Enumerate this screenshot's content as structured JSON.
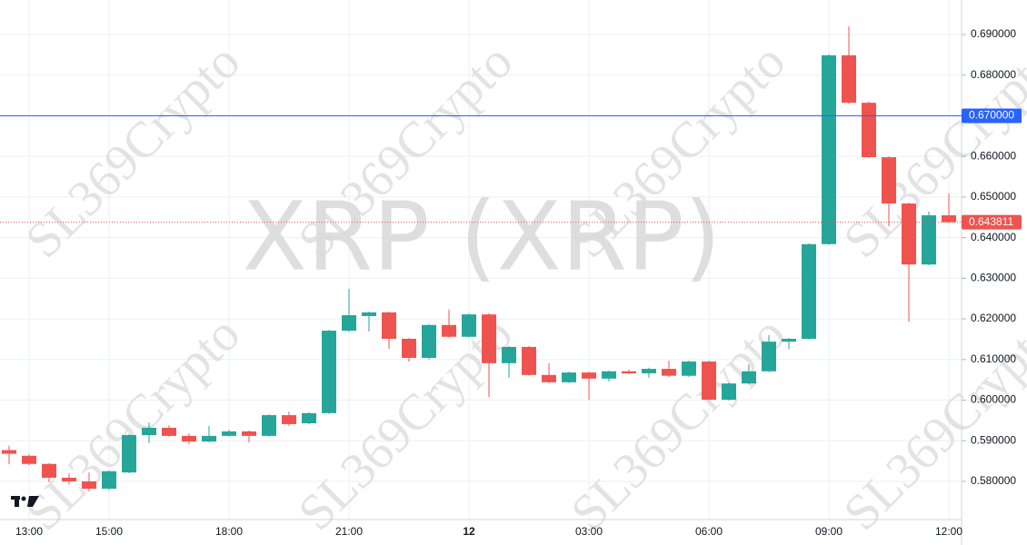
{
  "chart_data": {
    "type": "candlestick",
    "watermark": "XRP (XRP)",
    "brand": "SL369Crypto",
    "categories": [
      null,
      "13:00",
      null,
      null,
      null,
      "15:00",
      null,
      null,
      null,
      null,
      null,
      "18:00",
      null,
      null,
      null,
      null,
      null,
      "21:00",
      null,
      null,
      null,
      null,
      null,
      "12",
      null,
      null,
      null,
      null,
      null,
      "03:00",
      null,
      null,
      null,
      null,
      null,
      "06:00",
      null,
      null,
      null,
      null,
      null,
      "09:00",
      null,
      null,
      null,
      null,
      null,
      "12:00"
    ],
    "open": [
      0.5877,
      0.5863,
      0.5843,
      0.5809,
      0.58,
      0.5782,
      0.5822,
      0.5914,
      0.5932,
      0.5912,
      0.5898,
      0.5912,
      0.5923,
      0.5912,
      0.5963,
      0.5943,
      0.5968,
      0.6171,
      0.6207,
      0.6216,
      0.6151,
      0.6104,
      0.6185,
      0.6156,
      0.6211,
      0.6091,
      0.6131,
      0.6062,
      0.6044,
      0.6068,
      0.6053,
      0.6071,
      0.6066,
      0.6077,
      0.606,
      0.6095,
      0.6001,
      0.6041,
      0.6071,
      0.6144,
      0.6151,
      0.6384,
      0.6849,
      0.6732,
      0.6598,
      0.6484,
      0.6334,
      0.6455
    ],
    "high": [
      0.5888,
      0.5866,
      0.5845,
      0.582,
      0.5822,
      0.5827,
      0.5916,
      0.5945,
      0.5938,
      0.5918,
      0.5936,
      0.5927,
      0.5925,
      0.5965,
      0.5972,
      0.597,
      0.6173,
      0.6274,
      0.6218,
      0.6218,
      0.6153,
      0.6187,
      0.6223,
      0.6214,
      0.6214,
      0.6133,
      0.6133,
      0.6091,
      0.607,
      0.607,
      0.6073,
      0.6075,
      0.608,
      0.6097,
      0.6097,
      0.6097,
      0.6043,
      0.6088,
      0.616,
      0.6153,
      0.6386,
      0.6851,
      0.692,
      0.6735,
      0.66,
      0.6486,
      0.6464,
      0.6509
    ],
    "low": [
      0.5842,
      0.584,
      0.5798,
      0.5793,
      0.5775,
      0.5778,
      0.582,
      0.5894,
      0.591,
      0.5892,
      0.5896,
      0.591,
      0.5896,
      0.591,
      0.5936,
      0.5941,
      0.5966,
      0.6168,
      0.6169,
      0.6126,
      0.6095,
      0.61,
      0.6154,
      0.6154,
      0.6008,
      0.6055,
      0.606,
      0.6042,
      0.6042,
      0.6001,
      0.6046,
      0.6064,
      0.6055,
      0.6057,
      0.6057,
      0.5999,
      0.5999,
      0.6039,
      0.6069,
      0.6126,
      0.6149,
      0.6382,
      0.673,
      0.6596,
      0.6428,
      0.6193,
      0.6332,
      0.6436
    ],
    "close": [
      0.5868,
      0.5843,
      0.5809,
      0.58,
      0.5782,
      0.5825,
      0.5914,
      0.5932,
      0.5912,
      0.5898,
      0.5912,
      0.5923,
      0.5912,
      0.5963,
      0.5941,
      0.5968,
      0.6171,
      0.6209,
      0.6216,
      0.6151,
      0.6104,
      0.6185,
      0.6156,
      0.6211,
      0.6091,
      0.6131,
      0.6062,
      0.6044,
      0.6068,
      0.6053,
      0.6071,
      0.6066,
      0.6077,
      0.606,
      0.6095,
      0.6001,
      0.6041,
      0.6071,
      0.6144,
      0.6151,
      0.6384,
      0.6849,
      0.6732,
      0.6598,
      0.6484,
      0.6334,
      0.6455,
      0.643811
    ],
    "up_color": "#26a69a",
    "down_color": "#ef5350",
    "ylim": [
      0.5706,
      0.6985
    ],
    "yticks": [
      {
        "value": 0.58,
        "label": "0.580000"
      },
      {
        "value": 0.59,
        "label": "0.590000"
      },
      {
        "value": 0.6,
        "label": "0.600000"
      },
      {
        "value": 0.61,
        "label": "0.610000"
      },
      {
        "value": 0.62,
        "label": "0.620000"
      },
      {
        "value": 0.63,
        "label": "0.630000"
      },
      {
        "value": 0.64,
        "label": "0.640000"
      },
      {
        "value": 0.65,
        "label": "0.650000"
      },
      {
        "value": 0.66,
        "label": "0.660000"
      },
      {
        "value": 0.67,
        "label": "0.670000"
      },
      {
        "value": 0.68,
        "label": "0.680000"
      },
      {
        "value": 0.69,
        "label": "0.690000"
      }
    ],
    "hline": {
      "value": 0.67,
      "label": "0.670000",
      "color": "#2962ff"
    },
    "grid": true
  }
}
